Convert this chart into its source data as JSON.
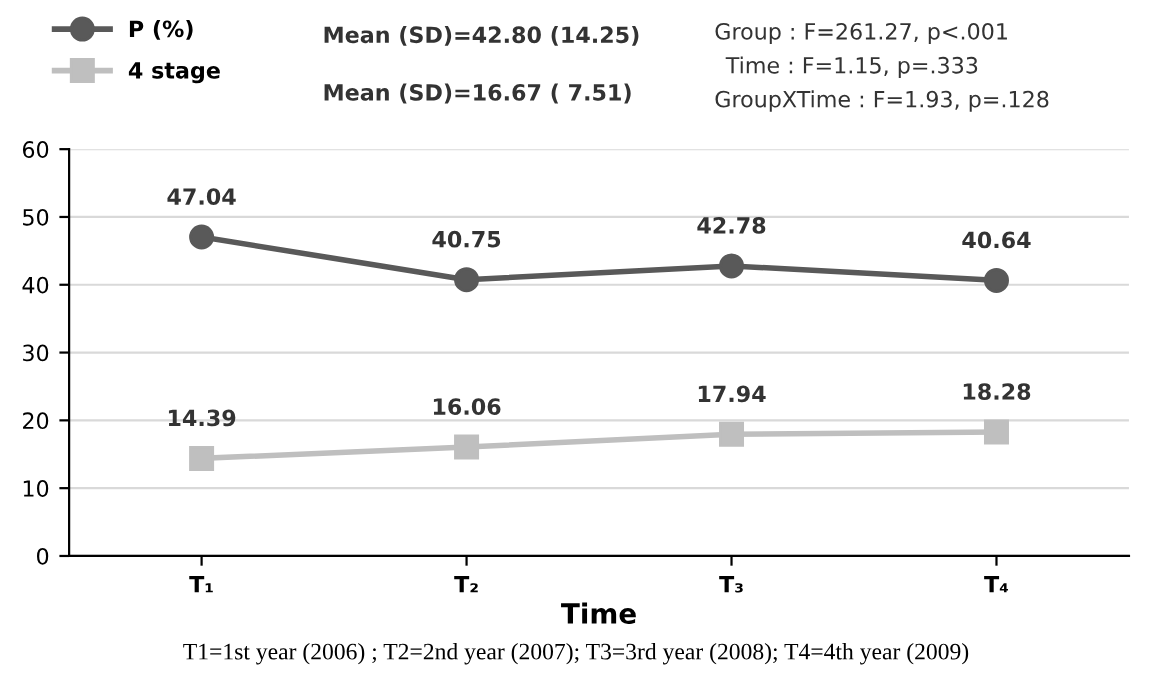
{
  "chart_data": {
    "type": "line",
    "xlabel": "Time",
    "categories": [
      "T₁",
      "T₂",
      "T₃",
      "T₄"
    ],
    "series": [
      {
        "name": "P (%)",
        "color": "#595959",
        "marker": "circle",
        "values": [
          47.04,
          40.75,
          42.78,
          40.64
        ]
      },
      {
        "name": "4 stage",
        "color": "#bfbfbf",
        "marker": "square",
        "values": [
          14.39,
          16.06,
          17.94,
          18.28
        ]
      }
    ],
    "ylim": [
      0,
      60
    ],
    "yticks": [
      0,
      10,
      20,
      30,
      40,
      50,
      60
    ],
    "grid": "y",
    "legend": "top left",
    "data_labels": true,
    "annotations": [
      "Mean (SD)=42.80 (14.25)",
      "Mean (SD)=16.67 ( 7.51)",
      "Group : F=261.27, p<.001",
      "Time : F=1.15, p=.333",
      "GroupXTime : F=1.93, p=.128",
      "T1=1st year (2006) ; T2=2nd year (2007); T3=3rd year (2008); T4=4th year (2009)"
    ]
  }
}
